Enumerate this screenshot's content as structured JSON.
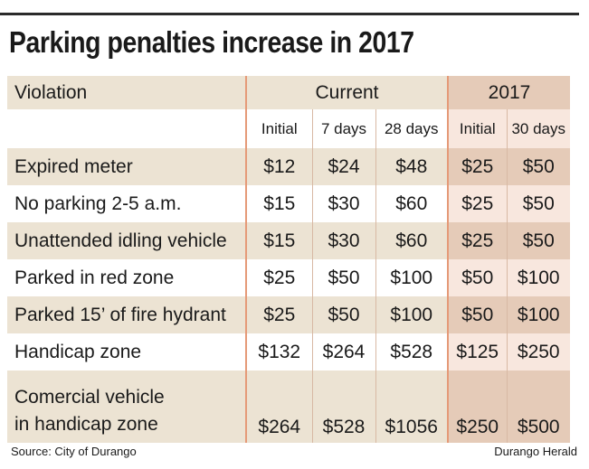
{
  "title": "Parking penalties increase in 2017",
  "header": {
    "violation": "Violation",
    "current": "Current",
    "new": "2017",
    "sub": [
      "Initial",
      "7 days",
      "28 days",
      "Initial",
      "30 days"
    ]
  },
  "rows": [
    {
      "label": "Expired meter",
      "values": [
        "$12",
        "$24",
        "$48",
        "$25",
        "$50"
      ]
    },
    {
      "label": "No parking 2-5 a.m.",
      "values": [
        "$15",
        "$30",
        "$60",
        "$25",
        "$50"
      ]
    },
    {
      "label": "Unattended idling vehicle",
      "values": [
        "$15",
        "$30",
        "$60",
        "$25",
        "$50"
      ]
    },
    {
      "label": "Parked in red zone",
      "values": [
        "$25",
        "$50",
        "$100",
        "$50",
        "$100"
      ]
    },
    {
      "label": "Parked 15’ of fire hydrant",
      "values": [
        "$25",
        "$50",
        "$100",
        "$50",
        "$100"
      ]
    },
    {
      "label": "Handicap zone",
      "values": [
        "$132",
        "$264",
        "$528",
        "$125",
        "$250"
      ]
    },
    {
      "label_line1": "Comercial vehicle",
      "label_line2": "in handicap zone",
      "values": [
        "$264",
        "$528",
        "$1056",
        "$250",
        "$500"
      ]
    }
  ],
  "footer": {
    "source": "Source: City of Durango",
    "credit": "Durango Herald"
  },
  "chart_data": {
    "type": "table",
    "title": "Parking penalties increase in 2017",
    "columns": [
      "Violation",
      "Current Initial",
      "Current 7 days",
      "Current 28 days",
      "2017 Initial",
      "2017 30 days"
    ],
    "rows": [
      [
        "Expired meter",
        12,
        24,
        48,
        25,
        50
      ],
      [
        "No parking 2-5 a.m.",
        15,
        30,
        60,
        25,
        50
      ],
      [
        "Unattended idling vehicle",
        15,
        30,
        60,
        25,
        50
      ],
      [
        "Parked in red zone",
        25,
        50,
        100,
        50,
        100
      ],
      [
        "Parked 15’ of fire hydrant",
        25,
        50,
        100,
        50,
        100
      ],
      [
        "Handicap zone",
        132,
        264,
        528,
        125,
        250
      ],
      [
        "Comercial vehicle in handicap zone",
        264,
        528,
        1056,
        250,
        500
      ]
    ]
  },
  "colors": {
    "band_beige": "#ece3d3",
    "band_2017": "#e5cbb8",
    "light_2017": "#f8e7de",
    "divider": "#e59a78"
  }
}
